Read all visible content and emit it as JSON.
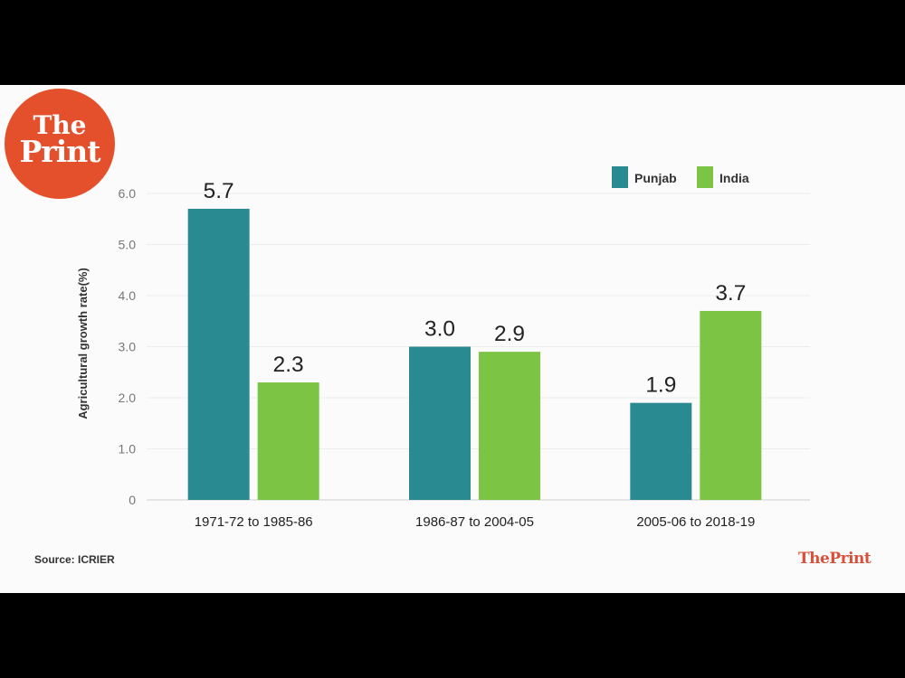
{
  "logo": {
    "line1": "The",
    "line2": "Print"
  },
  "brand": "ThePrint",
  "source": "Source: ICRIER",
  "chart_data": {
    "type": "bar",
    "title": "",
    "ylabel": "Agricultural growth rate(%)",
    "xlabel": "",
    "ylim": [
      0,
      6
    ],
    "yticks": [
      "0",
      "1.0",
      "2.0",
      "3.0",
      "4.0",
      "5.0",
      "6.0"
    ],
    "categories": [
      "1971-72 to 1985-86",
      "1986-87 to 2004-05",
      "2005-06 to 2018-19"
    ],
    "series": [
      {
        "name": "Punjab",
        "color": "#2a8a91",
        "values": [
          5.7,
          3.0,
          1.9
        ],
        "labels": [
          "5.7",
          "3.0",
          "1.9"
        ]
      },
      {
        "name": "India",
        "color": "#7cc444",
        "values": [
          2.3,
          2.9,
          3.7
        ],
        "labels": [
          "2.3",
          "2.9",
          "3.7"
        ]
      }
    ],
    "legend": "top-right",
    "grid": true
  }
}
